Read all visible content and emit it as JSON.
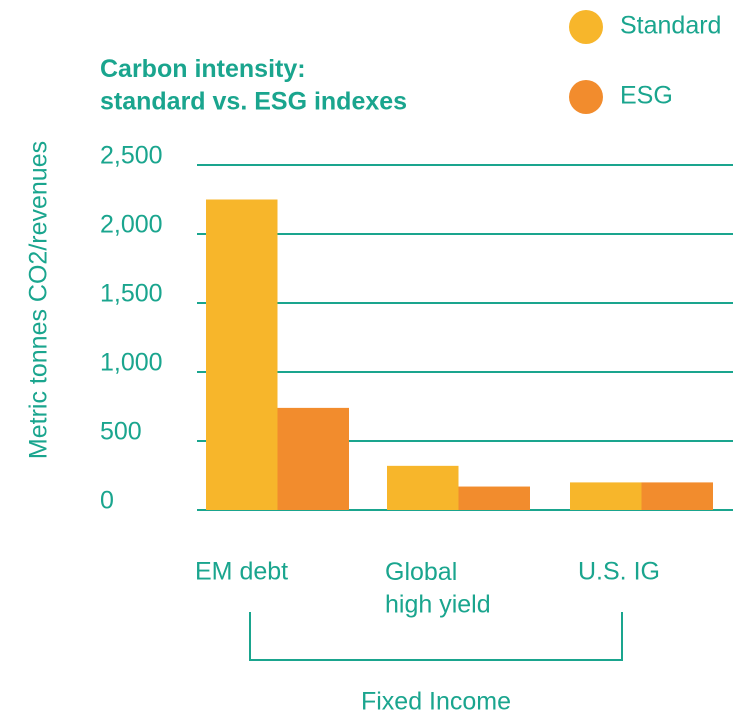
{
  "chart_data": {
    "type": "bar",
    "title": "Carbon intensity:\nstandard vs. ESG indexes",
    "y_label": "Metric tonnes CO2/revenues",
    "categories": [
      "EM debt",
      "Global\nhigh yield",
      "U.S. IG"
    ],
    "group_label": "Fixed Income",
    "series": [
      {
        "name": "Standard",
        "color": "#f7b62b",
        "values": [
          2250,
          320,
          200
        ]
      },
      {
        "name": "ESG",
        "color": "#f28c2d",
        "values": [
          740,
          170,
          200
        ]
      }
    ],
    "ylim": [
      0,
      2500
    ],
    "yticks": [
      0,
      500,
      {
        "value": 1000,
        "label": "1,000"
      },
      {
        "value": 1500,
        "label": "1,500"
      },
      {
        "value": 2000,
        "label": "2,000"
      },
      {
        "value": 2500,
        "label": "2,500"
      }
    ],
    "grid": true,
    "legend": "top-right"
  }
}
